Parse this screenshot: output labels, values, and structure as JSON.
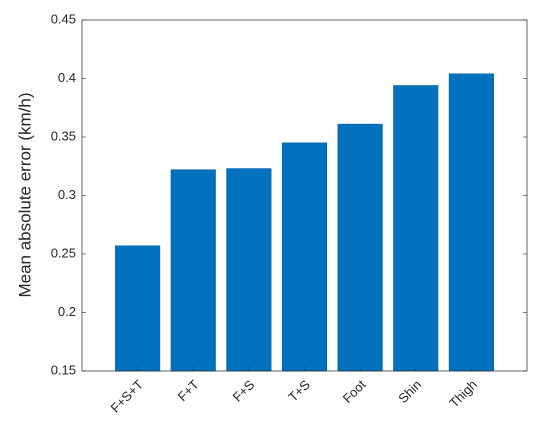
{
  "chart_data": {
    "type": "bar",
    "y_label": "Mean absolute error (km/h)",
    "categories": [
      "F+S+T",
      "F+T",
      "F+S",
      "T+S",
      "Foot",
      "Shin",
      "Thigh"
    ],
    "values": [
      0.257,
      0.322,
      0.323,
      0.345,
      0.361,
      0.394,
      0.404
    ],
    "color": "#0072bd",
    "ylim": [
      0.15,
      0.45
    ],
    "yticks": [
      0.15,
      0.2,
      0.25,
      0.3,
      0.35,
      0.4,
      0.45
    ],
    "grid": false
  }
}
